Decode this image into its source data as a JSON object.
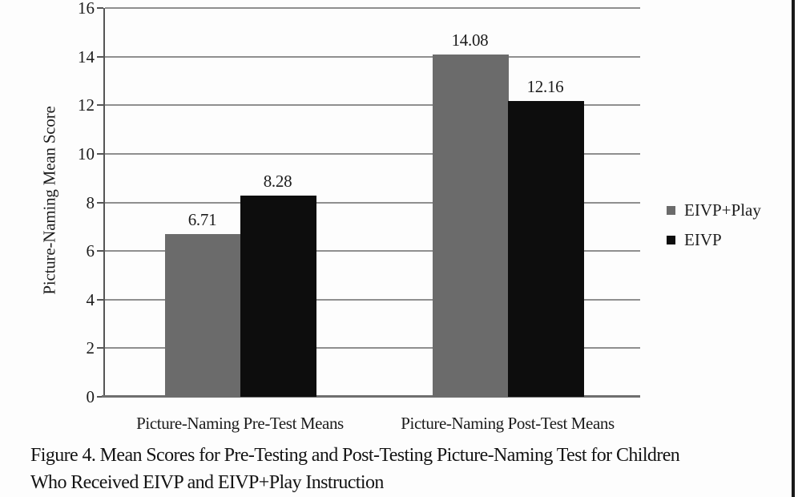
{
  "chart_data": {
    "type": "bar",
    "title": "",
    "categories": [
      "Picture-Naming Pre-Test Means",
      "Picture-Naming Post-Test Means"
    ],
    "series": [
      {
        "name": "EIVP+Play",
        "color": "#6b6b6b",
        "values": [
          6.71,
          14.08
        ]
      },
      {
        "name": "EIVP",
        "color": "#0d0d0d",
        "values": [
          8.28,
          12.16
        ]
      }
    ],
    "value_label_format": "2-decimals",
    "xlabel": "",
    "ylabel": "Picture-Naming Mean Score",
    "ylim": [
      0,
      16
    ],
    "yticks": [
      0,
      2,
      4,
      6,
      8,
      10,
      12,
      14,
      16
    ],
    "grid": "horizontal",
    "legend_position": "right-of-plot"
  },
  "caption": {
    "line1": "Figure 4. Mean Scores for Pre-Testing and Post-Testing Picture-Naming Test for Children",
    "line2": "Who Received EIVP and EIVP+Play Instruction"
  },
  "colors": {
    "background": "#fdfdfd",
    "gridline": "#8f8f8f",
    "axis": "#555555",
    "baseline": "#6f6f6f",
    "text": "#1c1c1c",
    "page_border": "#191919"
  }
}
